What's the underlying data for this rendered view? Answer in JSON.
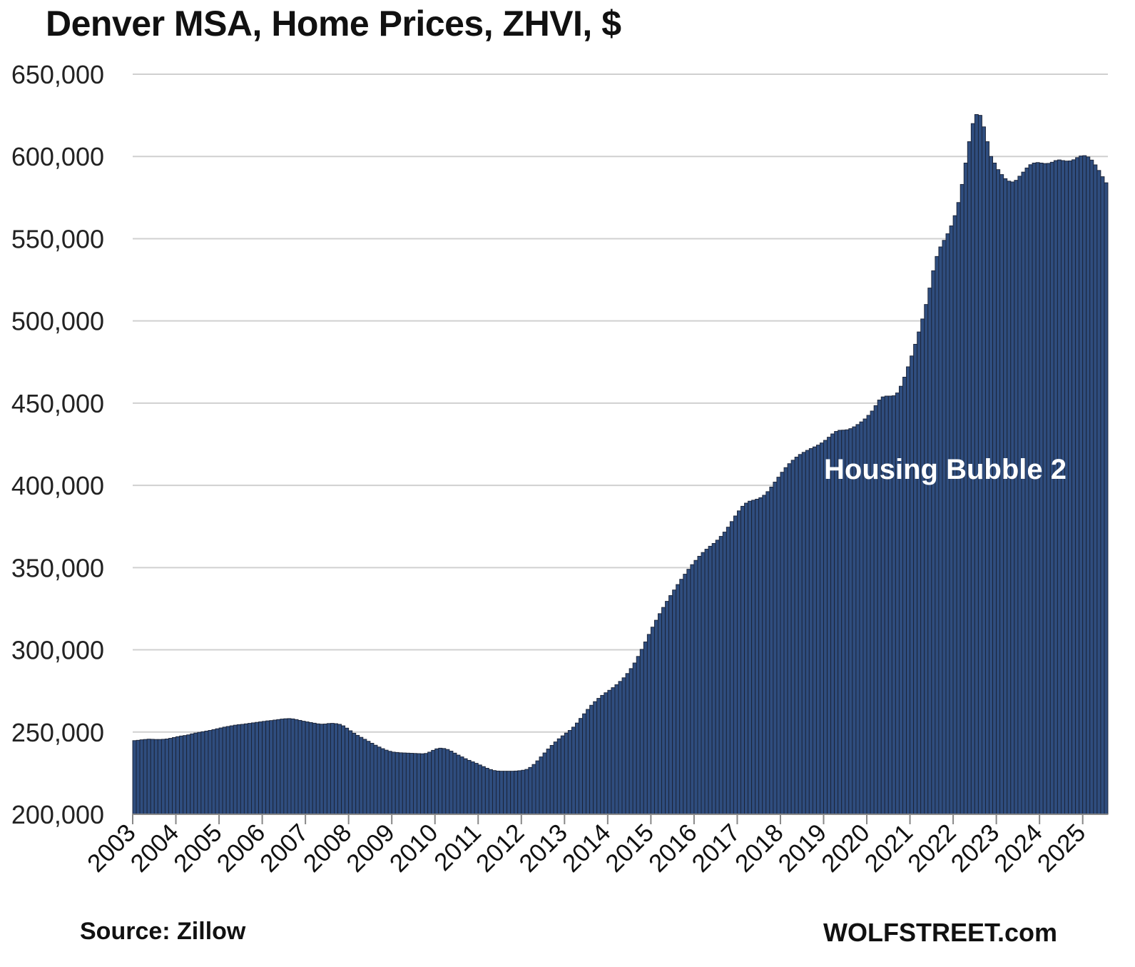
{
  "footer": {
    "source": "Source: Zillow",
    "brand": "WOLFSTREET.com"
  },
  "colors": {
    "bar_fill": "#2f4d7e",
    "bar_edge": "#1a2235",
    "grid": "#d0d0d0",
    "text": "#111111"
  },
  "chart_data": {
    "type": "bar",
    "title": "Denver MSA, Home Prices, ZHVI, $",
    "xlabel": "",
    "ylabel": "",
    "ylim": [
      200000,
      650000
    ],
    "yticks": [
      200000,
      250000,
      300000,
      350000,
      400000,
      450000,
      500000,
      550000,
      600000,
      650000
    ],
    "ytick_labels": [
      "200,000",
      "250,000",
      "300,000",
      "350,000",
      "400,000",
      "450,000",
      "500,000",
      "550,000",
      "600,000",
      "650,000"
    ],
    "xtick_labels": [
      "2003",
      "2004",
      "2005",
      "2006",
      "2007",
      "2008",
      "2009",
      "2010",
      "2011",
      "2012",
      "2013",
      "2014",
      "2015",
      "2016",
      "2017",
      "2018",
      "2019",
      "2020",
      "2021",
      "2022",
      "2023",
      "2024",
      "2025"
    ],
    "grid": true,
    "legend": "none",
    "annotation": "Housing Bubble 2",
    "frequency": "monthly",
    "first_period": "2003-01",
    "last_period": "2025-07",
    "values": [
      244800,
      245000,
      245300,
      245500,
      245700,
      245600,
      245500,
      245500,
      245600,
      245800,
      246200,
      246700,
      247200,
      247600,
      247900,
      248300,
      248900,
      249400,
      249800,
      250200,
      250600,
      251000,
      251500,
      252000,
      252500,
      253000,
      253400,
      253800,
      254200,
      254500,
      254700,
      255000,
      255300,
      255600,
      255900,
      256200,
      256500,
      256800,
      257000,
      257300,
      257600,
      257900,
      258100,
      258200,
      258000,
      257600,
      257100,
      256600,
      256200,
      255800,
      255400,
      255000,
      254800,
      254900,
      255200,
      255300,
      255100,
      254700,
      253800,
      252400,
      250800,
      249300,
      248000,
      246800,
      245600,
      244400,
      243200,
      242000,
      240900,
      239900,
      239000,
      238300,
      237800,
      237600,
      237400,
      237300,
      237200,
      237100,
      237000,
      236900,
      236800,
      237000,
      237800,
      238900,
      239800,
      240200,
      240000,
      239400,
      238400,
      237200,
      236000,
      234900,
      233800,
      232800,
      231900,
      231000,
      230000,
      229000,
      228000,
      227200,
      226600,
      226300,
      226200,
      226200,
      226200,
      226200,
      226300,
      226500,
      226800,
      227300,
      228500,
      230300,
      232500,
      234900,
      237300,
      239700,
      241900,
      244000,
      245900,
      247700,
      249400,
      251000,
      253000,
      255500,
      258300,
      261100,
      263800,
      266300,
      268500,
      270500,
      272300,
      273900,
      275400,
      277000,
      278800,
      280800,
      283000,
      285600,
      288600,
      292000,
      296000,
      300300,
      304800,
      309400,
      313800,
      318000,
      322000,
      325800,
      329500,
      333000,
      336400,
      339700,
      342900,
      346000,
      349000,
      351800,
      354400,
      356900,
      359200,
      361200,
      363000,
      364700,
      366700,
      369000,
      371600,
      374600,
      378000,
      381400,
      384500,
      387300,
      389200,
      390400,
      391000,
      391600,
      392500,
      394000,
      396200,
      399000,
      402000,
      405000,
      408000,
      410800,
      413200,
      415300,
      417200,
      418800,
      420100,
      421300,
      422400,
      423400,
      424500,
      425800,
      427400,
      429300,
      431300,
      432800,
      433500,
      433600,
      433800,
      434500,
      435600,
      437000,
      438600,
      440400,
      442600,
      445200,
      448500,
      451900,
      453800,
      454300,
      454300,
      454500,
      456200,
      460300,
      465800,
      472100,
      478700,
      485800,
      493300,
      501200,
      510000,
      520000,
      530500,
      539200,
      545000,
      549000,
      553000,
      557800,
      564000,
      572000,
      583000,
      596000,
      609000,
      620000,
      625500,
      625000,
      618000,
      609000,
      600000,
      596000,
      592000,
      589000,
      586500,
      585000,
      584500,
      585500,
      588000,
      590500,
      593000,
      595000,
      596000,
      596300,
      596000,
      595700,
      595800,
      596500,
      597500,
      597900,
      597500,
      597200,
      597300,
      598000,
      599300,
      600300,
      600500,
      599700,
      597800,
      594900,
      591500,
      587700,
      584000
    ]
  }
}
